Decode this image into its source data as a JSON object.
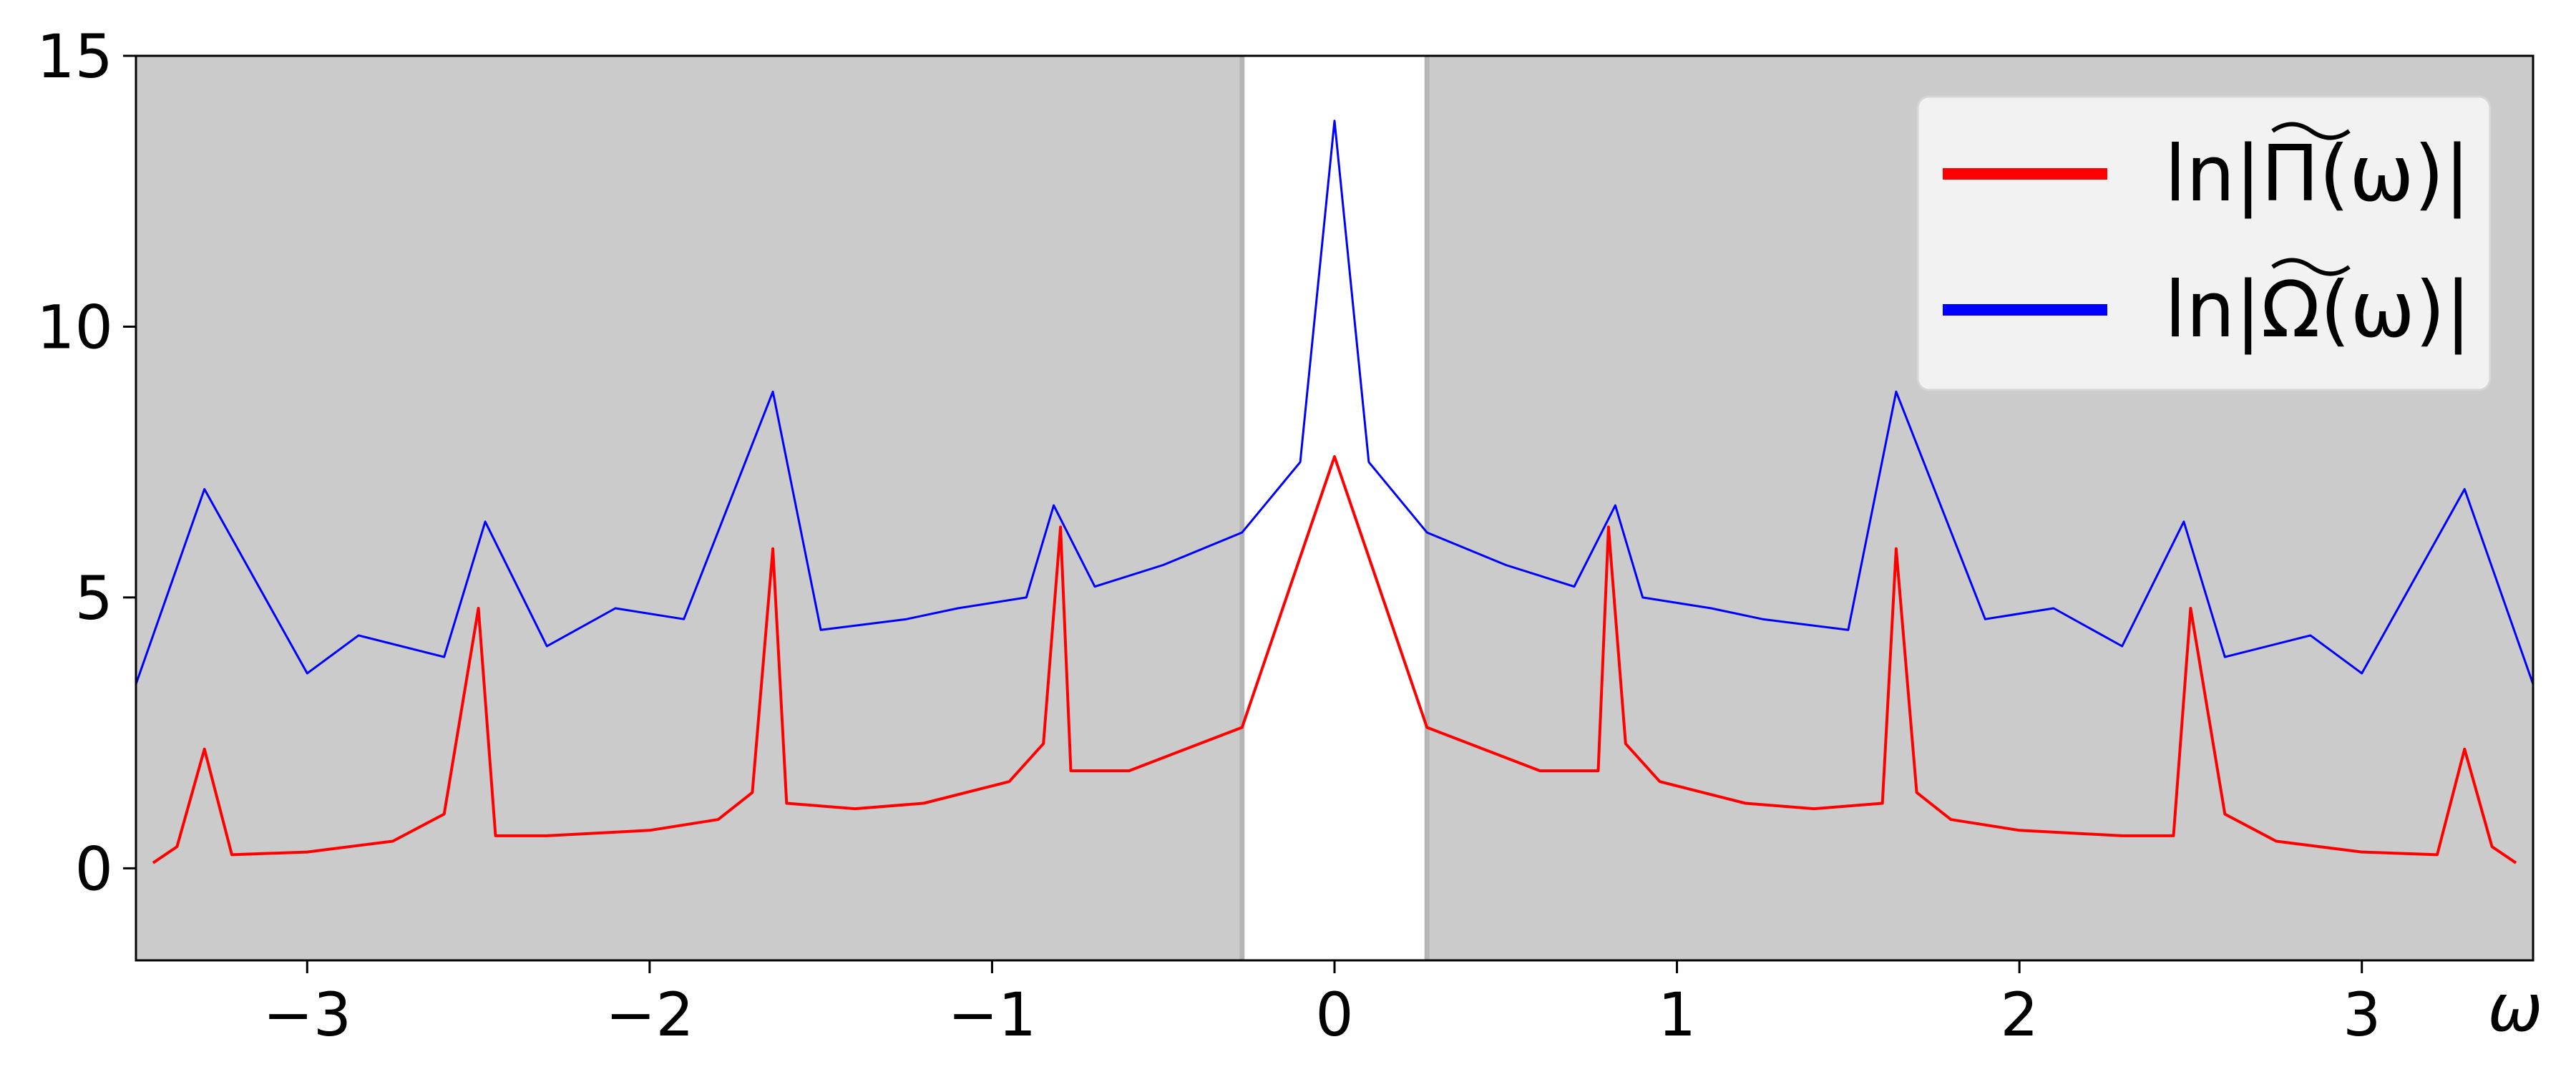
{
  "chart_data": {
    "type": "line",
    "title": "",
    "xlabel": "ω",
    "ylabel": "",
    "xlim": [
      -3.5,
      3.5
    ],
    "ylim": [
      -1.7,
      15
    ],
    "x_ticks": [
      -3,
      -2,
      -1,
      0,
      1,
      2,
      3
    ],
    "x_tick_labels": [
      "−3",
      "−2",
      "−1",
      "0",
      "1",
      "2",
      "3"
    ],
    "y_ticks": [
      0,
      5,
      10,
      15
    ],
    "y_tick_labels": [
      "0",
      "5",
      "10",
      "15"
    ],
    "grid": false,
    "legend_position": "top-right",
    "shaded_regions": [
      {
        "x0": -3.5,
        "x1": -0.27,
        "color": "#cbcbcb"
      },
      {
        "x0": 0.27,
        "x1": 3.5,
        "color": "#cbcbcb"
      }
    ],
    "series": [
      {
        "name": "ln|Π̃(ω)|",
        "legend_main": "ln|Π(ω)|",
        "color": "#ff0000",
        "x": [
          -3.45,
          -3.38,
          -3.3,
          -3.22,
          -3.0,
          -2.75,
          -2.6,
          -2.5,
          -2.45,
          -2.3,
          -2.0,
          -1.8,
          -1.7,
          -1.64,
          -1.6,
          -1.4,
          -1.2,
          -0.95,
          -0.85,
          -0.8,
          -0.77,
          -0.6,
          -0.27,
          0,
          0.27,
          0.6,
          0.77,
          0.8,
          0.85,
          0.95,
          1.2,
          1.4,
          1.6,
          1.64,
          1.7,
          1.8,
          2.0,
          2.3,
          2.45,
          2.5,
          2.6,
          2.75,
          3.0,
          3.22,
          3.3,
          3.38,
          3.45
        ],
        "y": [
          0.1,
          0.4,
          2.2,
          0.25,
          0.3,
          0.5,
          1.0,
          4.8,
          0.6,
          0.6,
          0.7,
          0.9,
          1.4,
          5.9,
          1.2,
          1.1,
          1.2,
          1.6,
          2.3,
          6.3,
          1.8,
          1.8,
          2.6,
          7.6,
          2.6,
          1.8,
          1.8,
          6.3,
          2.3,
          1.6,
          1.2,
          1.1,
          1.2,
          5.9,
          1.4,
          0.9,
          0.7,
          0.6,
          0.6,
          4.8,
          1.0,
          0.5,
          0.3,
          0.25,
          2.2,
          0.4,
          0.1
        ]
      },
      {
        "name": "ln|Ω̃(ω)|",
        "legend_main": "ln|Ω(ω)|",
        "color": "#0000ff",
        "x": [
          -3.5,
          -3.3,
          -3.0,
          -2.85,
          -2.6,
          -2.48,
          -2.3,
          -2.1,
          -1.9,
          -1.64,
          -1.5,
          -1.25,
          -1.1,
          -0.9,
          -0.82,
          -0.7,
          -0.5,
          -0.27,
          -0.1,
          0,
          0.1,
          0.27,
          0.5,
          0.7,
          0.82,
          0.9,
          1.1,
          1.25,
          1.5,
          1.64,
          1.9,
          2.1,
          2.3,
          2.48,
          2.6,
          2.85,
          3.0,
          3.3,
          3.5
        ],
        "y": [
          3.4,
          7.0,
          3.6,
          4.3,
          3.9,
          6.4,
          4.1,
          4.8,
          4.6,
          8.8,
          4.4,
          4.6,
          4.8,
          5.0,
          6.7,
          5.2,
          5.6,
          6.2,
          7.5,
          13.8,
          7.5,
          6.2,
          5.6,
          5.2,
          6.7,
          5.0,
          4.8,
          4.6,
          4.4,
          8.8,
          4.6,
          4.8,
          4.1,
          6.4,
          3.9,
          4.3,
          3.6,
          7.0,
          3.4
        ]
      }
    ]
  }
}
